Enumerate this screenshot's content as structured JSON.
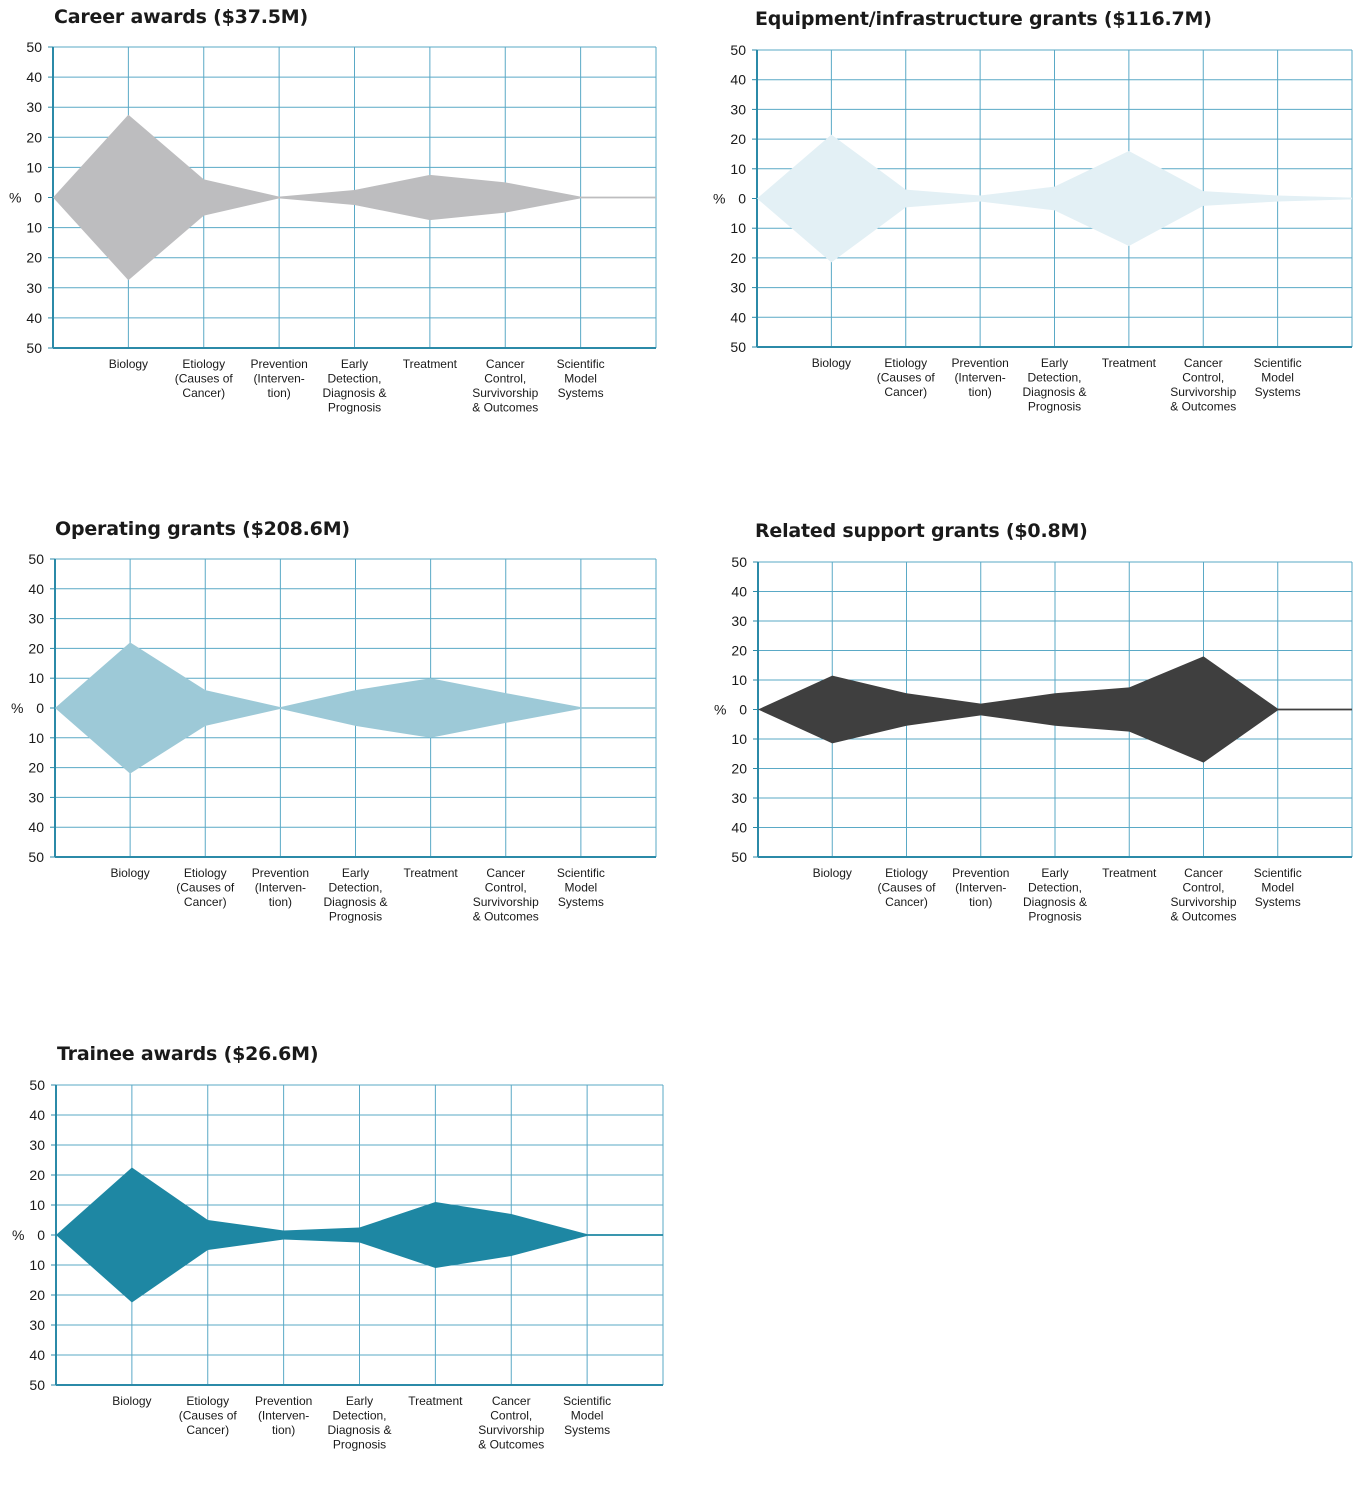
{
  "categories": [
    "Biology",
    "Etiology (Causes of Cancer)",
    "Prevention (Interven- tion)",
    "Early Detection, Diagnosis & Prognosis",
    "Treatment",
    "Cancer Control, Survivorship & Outcomes",
    "Scientific Model Systems"
  ],
  "category_lines": [
    [
      "Biology"
    ],
    [
      "Etiology",
      "(Causes of",
      "Cancer)"
    ],
    [
      "Prevention",
      "(Interven-",
      "tion)"
    ],
    [
      "Early",
      "Detection,",
      "Diagnosis &",
      "Prognosis"
    ],
    [
      "Treatment"
    ],
    [
      "Cancer",
      "Control,",
      "Survivorship",
      "& Outcomes"
    ],
    [
      "Scientific",
      "Model",
      "Systems"
    ]
  ],
  "y_axis": {
    "unit_label": "%",
    "tick_labels": [
      "50",
      "40",
      "30",
      "20",
      "10",
      "0",
      "10",
      "20",
      "30",
      "40",
      "50"
    ]
  },
  "colors": {
    "grid": "#5aa9c6",
    "axis": "#2b8aa8",
    "career": "#bdbdbf",
    "equipment": "#e3f0f5",
    "operating": "#9dc9d7",
    "related": "#3f3f3f",
    "trainee": "#1e87a3"
  },
  "chart_data": [
    {
      "type": "area",
      "title": "Career awards ($37.5M)",
      "categories": [
        "Biology",
        "Etiology (Causes of Cancer)",
        "Prevention (Interven- tion)",
        "Early Detection, Diagnosis & Prognosis",
        "Treatment",
        "Cancer Control, Survivorship & Outcomes",
        "Scientific Model Systems"
      ],
      "values": [
        27.5,
        6,
        0.3,
        2.5,
        7.5,
        5,
        0.3
      ],
      "ylim": [
        -50,
        50
      ],
      "grid": true,
      "color": "#bdbdbf"
    },
    {
      "type": "area",
      "title": "Equipment/infrastructure grants ($116.7M)",
      "categories": [
        "Biology",
        "Etiology (Causes of Cancer)",
        "Prevention (Interven- tion)",
        "Early Detection, Diagnosis & Prognosis",
        "Treatment",
        "Cancer Control, Survivorship & Outcomes",
        "Scientific Model Systems"
      ],
      "values": [
        21.5,
        3,
        1,
        4,
        16,
        2.5,
        1
      ],
      "ylim": [
        -50,
        50
      ],
      "grid": true,
      "color": "#e3f0f5"
    },
    {
      "type": "area",
      "title": "Operating grants ($208.6M)",
      "categories": [
        "Biology",
        "Etiology (Causes of Cancer)",
        "Prevention (Interven- tion)",
        "Early Detection, Diagnosis & Prognosis",
        "Treatment",
        "Cancer Control, Survivorship & Outcomes",
        "Scientific Model Systems"
      ],
      "values": [
        22,
        6,
        0.3,
        6,
        10,
        5,
        0.3
      ],
      "ylim": [
        -50,
        50
      ],
      "grid": true,
      "color": "#9dc9d7"
    },
    {
      "type": "area",
      "title": "Related support grants ($0.8M)",
      "categories": [
        "Biology",
        "Etiology (Causes of Cancer)",
        "Prevention (Interven- tion)",
        "Early Detection, Diagnosis & Prognosis",
        "Treatment",
        "Cancer Control, Survivorship & Outcomes",
        "Scientific Model Systems"
      ],
      "values": [
        11.5,
        5.5,
        2,
        5.5,
        7.5,
        18,
        0.3
      ],
      "ylim": [
        -50,
        50
      ],
      "grid": true,
      "color": "#3f3f3f"
    },
    {
      "type": "area",
      "title": "Trainee awards ($26.6M)",
      "categories": [
        "Biology",
        "Etiology (Causes of Cancer)",
        "Prevention (Interven- tion)",
        "Early Detection, Diagnosis & Prognosis",
        "Treatment",
        "Cancer Control, Survivorship & Outcomes",
        "Scientific Model Systems"
      ],
      "values": [
        22.5,
        5,
        1.5,
        2.5,
        11,
        7,
        0.3
      ],
      "ylim": [
        -50,
        50
      ],
      "grid": true,
      "color": "#1e87a3"
    }
  ]
}
